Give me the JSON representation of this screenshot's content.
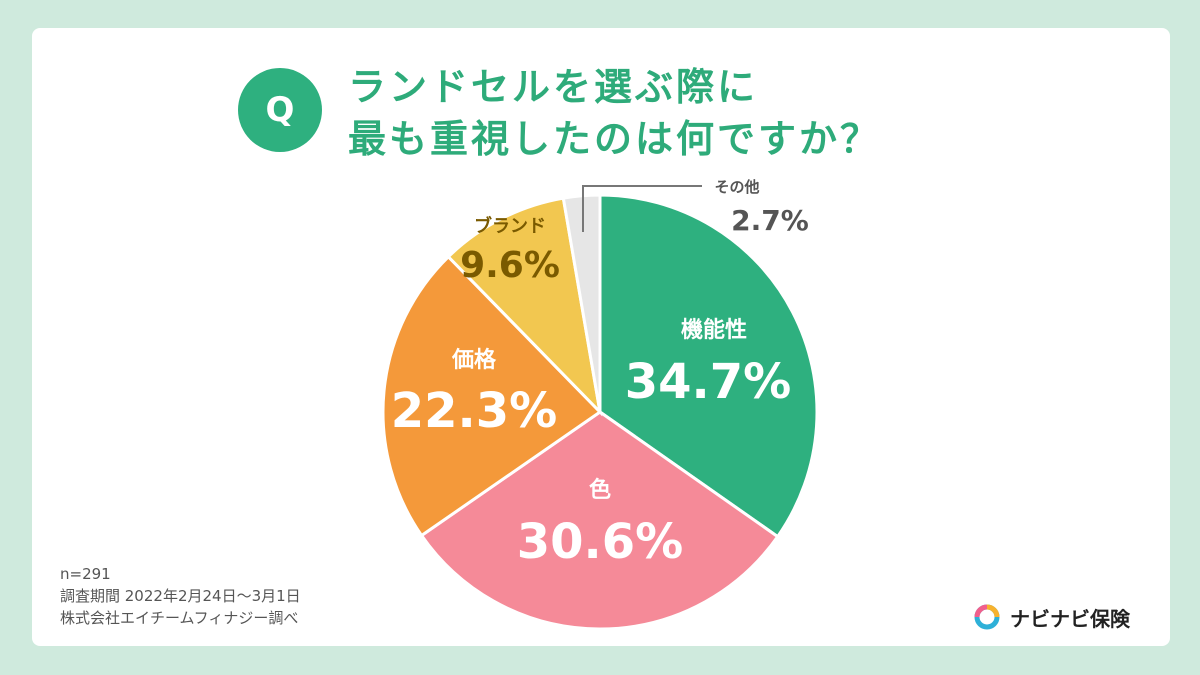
{
  "question": {
    "badge": "Q",
    "line1": "ランドセルを選ぶ際に",
    "line2": "最も重視したのは何ですか？"
  },
  "chart_data": {
    "type": "pie",
    "slices": [
      {
        "label": "機能性",
        "value": 34.7,
        "display": "34.7%",
        "color": "#2eb07f"
      },
      {
        "label": "色",
        "value": 30.6,
        "display": "30.6%",
        "color": "#f58a98"
      },
      {
        "label": "価格",
        "value": 22.3,
        "display": "22.3%",
        "color": "#f4993a"
      },
      {
        "label": "ブランド",
        "value": 9.6,
        "display": "9.6%",
        "color": "#f2c750"
      },
      {
        "label": "その他",
        "value": 2.7,
        "display": "2.7%",
        "color": "#e6e6e6"
      }
    ]
  },
  "footnote": {
    "sample": "n=291",
    "period": "調査期間 2022年2月24日～3月1日",
    "source": "株式会社エイチームフィナジー調べ"
  },
  "brand": {
    "name": "ナビナビ保険",
    "logo_icon": "navinavi-logo-icon",
    "logo_colors": [
      "#f25f8c",
      "#f7b22e",
      "#2eb0d8"
    ]
  },
  "colors": {
    "background": "#cfeadd",
    "card": "#ffffff",
    "accent": "#2eab7a"
  }
}
